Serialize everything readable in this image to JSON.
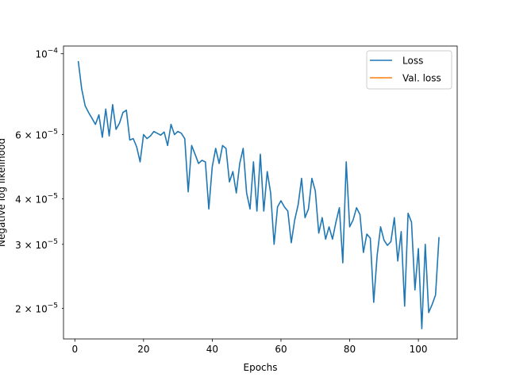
{
  "chart_data": {
    "type": "line",
    "title": "",
    "xlabel": "Epochs",
    "ylabel": "Negative log likelihood",
    "yscale": "log",
    "xlim": [
      -3.3,
      111.3
    ],
    "ylim": [
      1.65e-05,
      0.000105
    ],
    "x_ticks": [
      0,
      20,
      40,
      60,
      80,
      100
    ],
    "x_tick_labels": [
      "0",
      "20",
      "40",
      "60",
      "80",
      "100"
    ],
    "y_ticks": [
      2e-05,
      3e-05,
      4e-05,
      6e-05,
      0.0001
    ],
    "y_tick_labels": [
      {
        "mant": "2",
        "exp": "−5"
      },
      {
        "mant": "3",
        "exp": "−5"
      },
      {
        "mant": "4",
        "exp": "−5"
      },
      {
        "mant": "6",
        "exp": "−5"
      },
      {
        "mant": "10",
        "exp": "−4",
        "no_mantissa": true
      }
    ],
    "grid": false,
    "legend_position": "top-right",
    "series": [
      {
        "name": "Loss",
        "color": "#1f77b4",
        "x": [
          1,
          2,
          3,
          4,
          5,
          6,
          7,
          8,
          9,
          10,
          11,
          12,
          13,
          14,
          15,
          16,
          17,
          18,
          19,
          20,
          21,
          22,
          23,
          24,
          25,
          26,
          27,
          28,
          29,
          30,
          31,
          32,
          33,
          34,
          35,
          36,
          37,
          38,
          39,
          40,
          41,
          42,
          43,
          44,
          45,
          46,
          47,
          48,
          49,
          50,
          51,
          52,
          53,
          54,
          55,
          56,
          57,
          58,
          59,
          60,
          61,
          62,
          63,
          64,
          65,
          66,
          67,
          68,
          69,
          70,
          71,
          72,
          73,
          74,
          75,
          76,
          77,
          78,
          79,
          80,
          81,
          82,
          83,
          84,
          85,
          86,
          87,
          88,
          89,
          90,
          91,
          92,
          93,
          94,
          95,
          96,
          97,
          98,
          99,
          100,
          101,
          102,
          103,
          104,
          105,
          106
        ],
        "y": [
          9.55e-05,
          8e-05,
          7.2e-05,
          6.9e-05,
          6.65e-05,
          6.4e-05,
          6.8e-05,
          5.9e-05,
          7.05e-05,
          5.95e-05,
          7.25e-05,
          6.2e-05,
          6.45e-05,
          6.9e-05,
          7e-05,
          5.8e-05,
          5.85e-05,
          5.55e-05,
          5.05e-05,
          6e-05,
          5.85e-05,
          5.95e-05,
          6.12e-05,
          6.05e-05,
          5.98e-05,
          6.1e-05,
          5.6e-05,
          6.4e-05,
          6e-05,
          6.12e-05,
          6.05e-05,
          5.85e-05,
          4.18e-05,
          5.6e-05,
          5.3e-05,
          5e-05,
          5.1e-05,
          5.05e-05,
          3.75e-05,
          4.9e-05,
          5.5e-05,
          5e-05,
          5.6e-05,
          5.5e-05,
          4.45e-05,
          4.75e-05,
          4.15e-05,
          5e-05,
          5.5e-05,
          4.15e-05,
          3.75e-05,
          5.05e-05,
          3.7e-05,
          5.3e-05,
          3.7e-05,
          4.75e-05,
          4.15e-05,
          3e-05,
          3.8e-05,
          3.95e-05,
          3.8e-05,
          3.7e-05,
          3.03e-05,
          3.5e-05,
          3.85e-05,
          4.55e-05,
          3.55e-05,
          3.75e-05,
          4.55e-05,
          4.2e-05,
          3.22e-05,
          3.55e-05,
          3.1e-05,
          3.35e-05,
          3.1e-05,
          3.45e-05,
          3.78e-05,
          2.67e-05,
          5.05e-05,
          3.35e-05,
          3.5e-05,
          3.78e-05,
          3.62e-05,
          2.85e-05,
          3.2e-05,
          3.12e-05,
          2.08e-05,
          2.8e-05,
          3.35e-05,
          3.08e-05,
          2.98e-05,
          3.05e-05,
          3.55e-05,
          2.7e-05,
          3.25e-05,
          2.03e-05,
          3.65e-05,
          3.45e-05,
          2.25e-05,
          2.92e-05,
          1.76e-05,
          3e-05,
          1.95e-05,
          2.05e-05,
          2.18e-05,
          3.14e-05
        ]
      },
      {
        "name": "Val. loss",
        "color": "#ff7f0e",
        "x": [],
        "y": []
      }
    ]
  }
}
